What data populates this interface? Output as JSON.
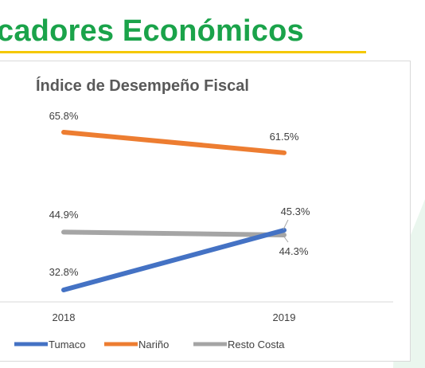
{
  "slide": {
    "title": "cadores Económicos"
  },
  "colors": {
    "title_green": "#1aa34a",
    "underline_yellow": "#f5c800",
    "tumaco": "#4472c4",
    "narino": "#ed7d31",
    "resto_costa": "#a5a5a5"
  },
  "chart_data": {
    "type": "line",
    "title": "Índice de Desempeño Fiscal",
    "categories": [
      "2018",
      "2019"
    ],
    "series": [
      {
        "name": "Tumaco",
        "values": [
          32.8,
          45.3
        ],
        "labels": [
          "32.8%",
          "45.3%"
        ],
        "color": "#4472c4"
      },
      {
        "name": "Nariño",
        "values": [
          65.8,
          61.5
        ],
        "labels": [
          "65.8%",
          "61.5%"
        ],
        "color": "#ed7d31"
      },
      {
        "name": "Resto Costa",
        "values": [
          44.9,
          44.3
        ],
        "labels": [
          "44.9%",
          "44.3%"
        ],
        "color": "#a5a5a5"
      }
    ],
    "legend_position": "bottom",
    "grid": false
  }
}
